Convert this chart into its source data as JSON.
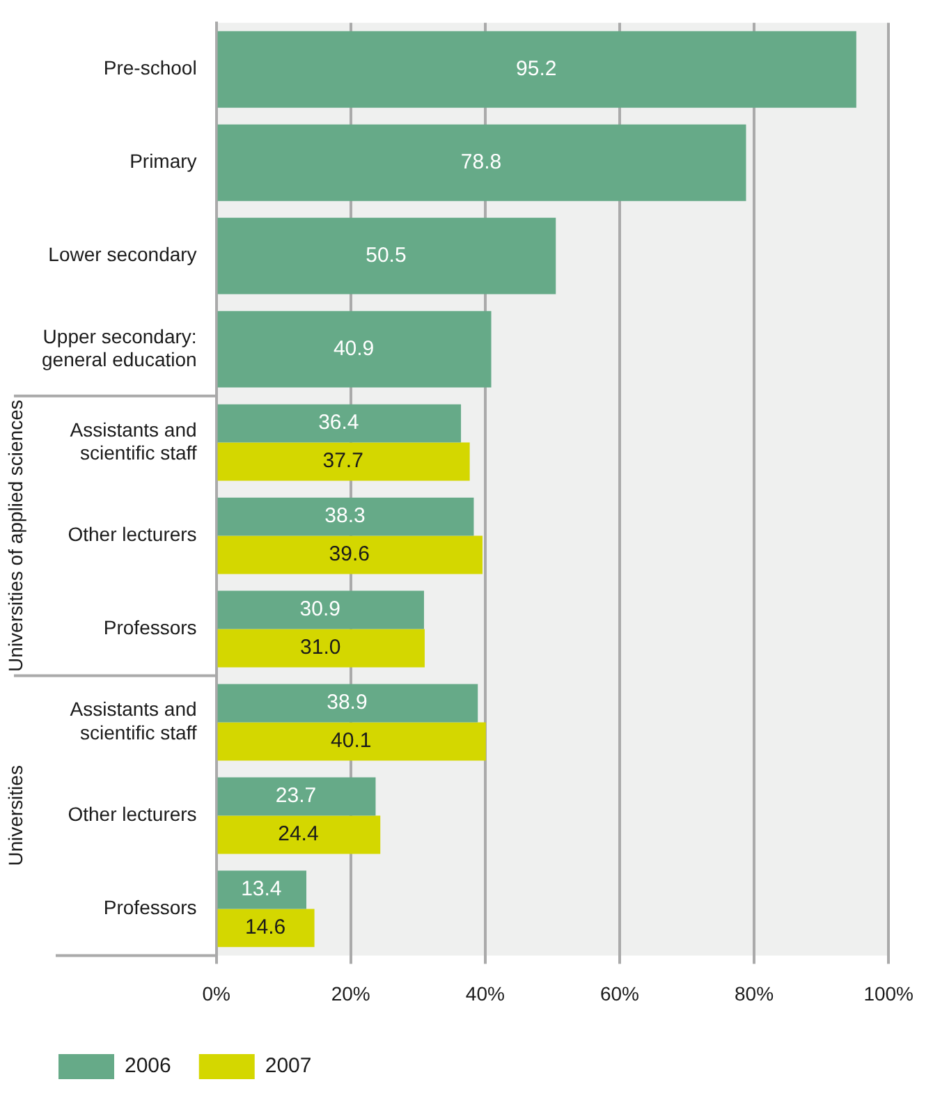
{
  "chart_data": {
    "type": "bar",
    "orientation": "horizontal",
    "categories": [
      "Pre-school",
      "Primary",
      "Lower secondary",
      "Upper secondary:\ngeneral education",
      "Assistants and\nscientific staff",
      "Other lecturers",
      "Professors",
      "Assistants and\nscientific staff",
      "Other lecturers",
      "Professors"
    ],
    "series": [
      {
        "name": "2006",
        "color": "#66aa88",
        "values": [
          95.2,
          78.8,
          50.5,
          40.9,
          36.4,
          38.3,
          30.9,
          38.9,
          23.7,
          13.4
        ]
      },
      {
        "name": "2007",
        "color": "#d4d700",
        "values": [
          null,
          null,
          null,
          null,
          37.7,
          39.6,
          31.0,
          40.1,
          24.4,
          14.6
        ],
        "value_labels": [
          null,
          null,
          null,
          null,
          "37.7",
          "39.6",
          "31.0",
          "40.1",
          "24.4",
          "14.6"
        ]
      }
    ],
    "xlim": [
      0,
      100
    ],
    "xticks": [
      {
        "value": 0,
        "label": "0%"
      },
      {
        "value": 20,
        "label": "20%"
      },
      {
        "value": 40,
        "label": "40%"
      },
      {
        "value": 60,
        "label": "60%"
      },
      {
        "value": 80,
        "label": "80%"
      },
      {
        "value": 100,
        "label": "100%"
      }
    ],
    "annotations": [
      "Universities of applied sciences",
      "Universities"
    ],
    "grid": "x",
    "legend": "bottom",
    "data_labels": true
  }
}
